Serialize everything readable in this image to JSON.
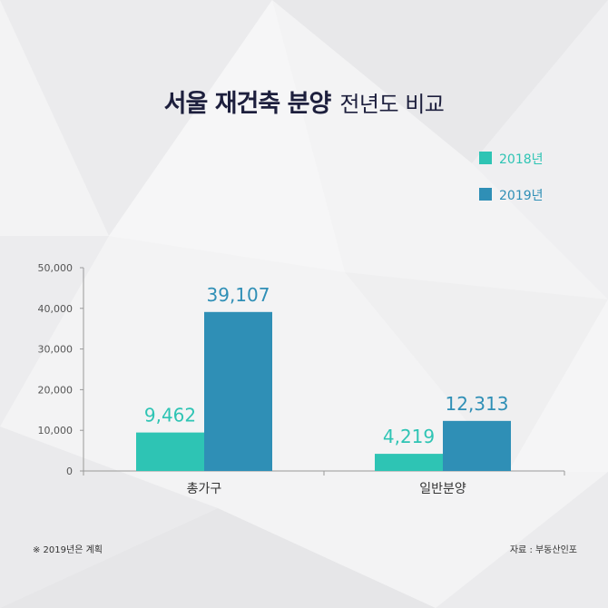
{
  "title": {
    "bold": "서울 재건축 분양",
    "light": "전년도 비교"
  },
  "colors": {
    "y2018": "#2ec4b4",
    "y2019": "#2f8fb6",
    "title": "#1d1f3d"
  },
  "chart_data": {
    "type": "bar",
    "title": "서울 재건축 분양 전년도 비교",
    "categories": [
      "총가구",
      "일반분양"
    ],
    "series": [
      {
        "name": "2018년",
        "values": [
          9462,
          4219
        ]
      },
      {
        "name": "2019년",
        "values": [
          39107,
          12313
        ]
      }
    ],
    "value_labels": [
      [
        "9,462",
        "4,219"
      ],
      [
        "39,107",
        "12,313"
      ]
    ],
    "yticks": [
      "0",
      "10,000",
      "20,000",
      "30,000",
      "40,000",
      "50,000"
    ],
    "ylim": [
      0,
      50000
    ],
    "xlabel": "",
    "ylabel": "",
    "grid": false,
    "legend": "top-right"
  },
  "notes": {
    "left": "※ 2019년은 계획",
    "right": "자료 : 부동산인포"
  }
}
